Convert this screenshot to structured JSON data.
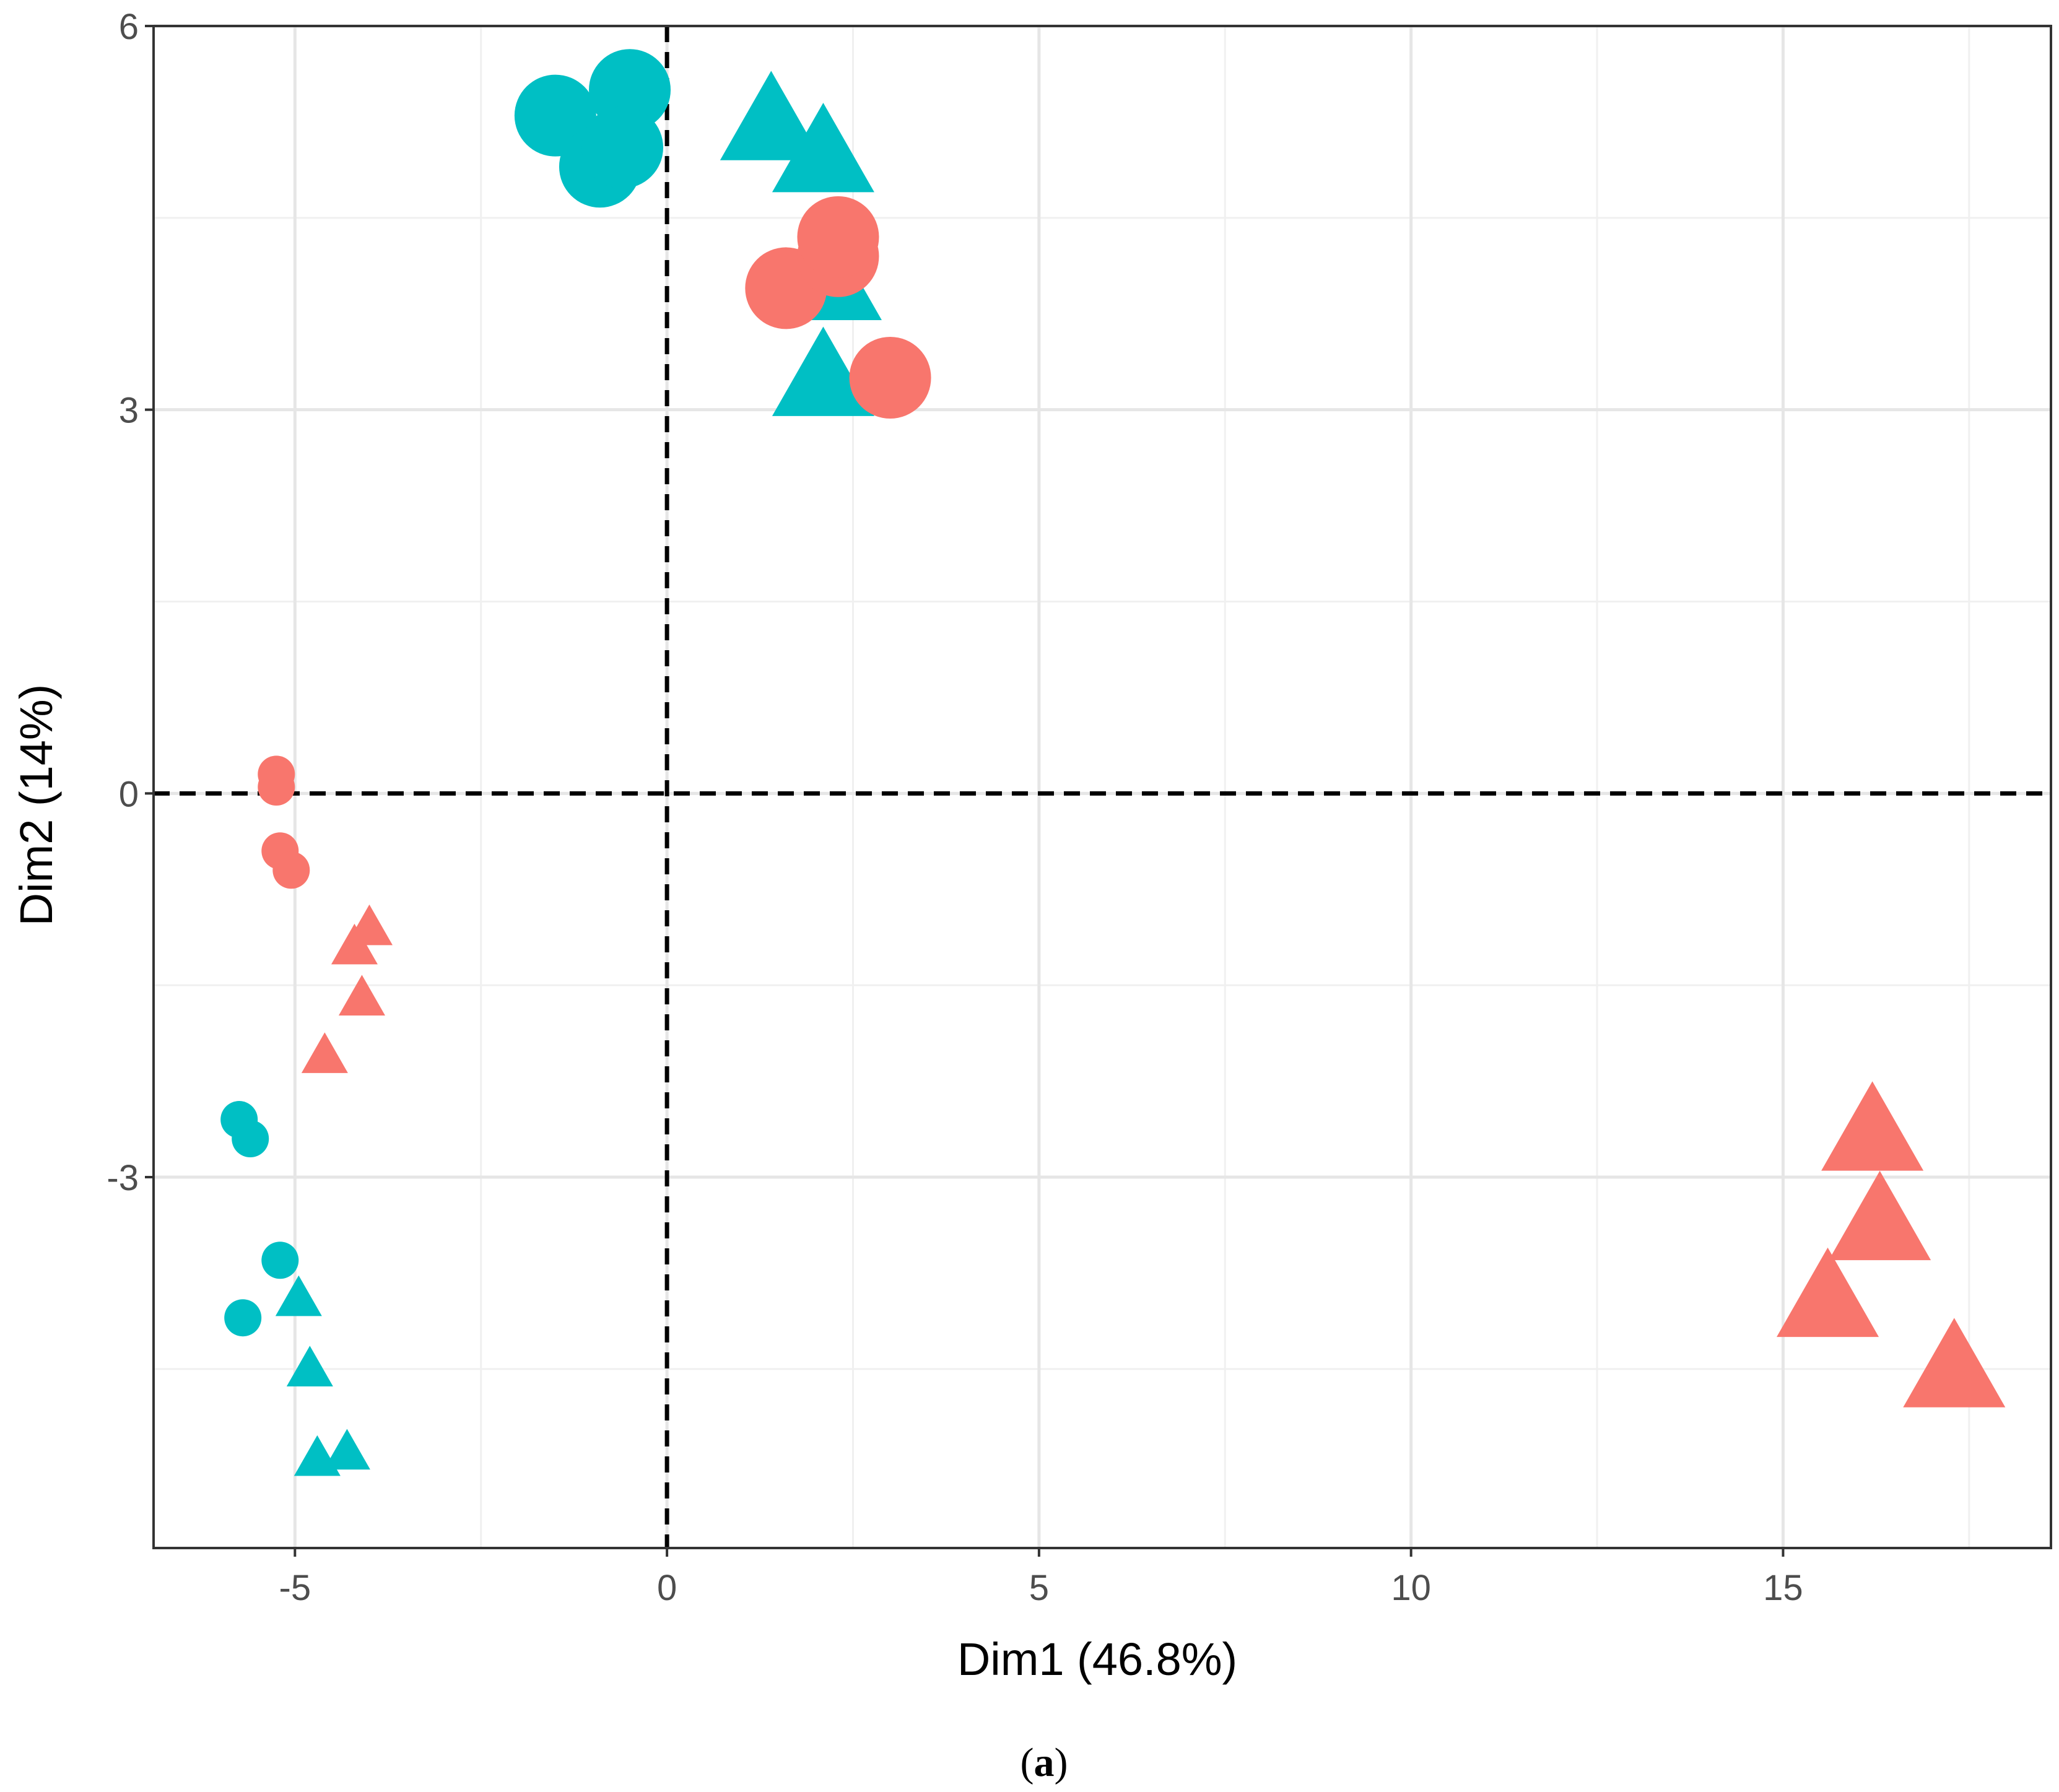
{
  "chart_data": {
    "type": "scatter",
    "title": "",
    "panel_label": {
      "open": "(",
      "letter": "a",
      "close": ")"
    },
    "xlabel": "Dim1 (46.8%)",
    "ylabel": "Dim2 (14%)",
    "xlim": [
      -6.9,
      18.6
    ],
    "ylim": [
      -5.9,
      6.0
    ],
    "x_ticks": [
      -5,
      0,
      5,
      10,
      15
    ],
    "x_tick_labels": [
      "-5",
      "0",
      "5",
      "10",
      "15"
    ],
    "y_ticks": [
      -3,
      0,
      3,
      6
    ],
    "y_tick_labels": [
      "-3",
      "0",
      "3",
      "6"
    ],
    "x_minor_ticks": [
      -2.5,
      2.5,
      7.5,
      12.5,
      17.5
    ],
    "y_minor_ticks": [
      -4.5,
      -1.5,
      1.5,
      4.5
    ],
    "grid": true,
    "reference_lines": {
      "x": 0,
      "y": 0,
      "style": "dashed"
    },
    "legend": "none",
    "colors": {
      "salmon": "#F8766D",
      "teal": "#00BFC4"
    },
    "series": [
      {
        "name": "teal-circle-large",
        "color": "teal",
        "shape": "circle",
        "size": "large",
        "points": [
          [
            -1.5,
            5.3
          ],
          [
            -0.5,
            5.5
          ],
          [
            -0.9,
            4.9
          ],
          [
            -0.6,
            5.05
          ]
        ]
      },
      {
        "name": "teal-triangle-large",
        "color": "teal",
        "shape": "triangle",
        "size": "large",
        "points": [
          [
            1.4,
            5.25
          ],
          [
            2.1,
            5.0
          ],
          [
            2.2,
            4.0
          ],
          [
            2.1,
            3.25
          ]
        ]
      },
      {
        "name": "salmon-circle-large",
        "color": "salmon",
        "shape": "circle",
        "size": "large",
        "points": [
          [
            1.6,
            3.95
          ],
          [
            2.3,
            4.2
          ],
          [
            2.3,
            4.35
          ],
          [
            3.0,
            3.25
          ]
        ]
      },
      {
        "name": "salmon-circle-small",
        "color": "salmon",
        "shape": "circle",
        "size": "small",
        "points": [
          [
            -5.25,
            0.15
          ],
          [
            -5.25,
            0.05
          ],
          [
            -5.2,
            -0.45
          ],
          [
            -5.05,
            -0.6
          ]
        ]
      },
      {
        "name": "salmon-triangle-small",
        "color": "salmon",
        "shape": "triangle",
        "size": "small",
        "points": [
          [
            -4.0,
            -1.05
          ],
          [
            -4.2,
            -1.2
          ],
          [
            -4.1,
            -1.6
          ],
          [
            -4.6,
            -2.05
          ]
        ]
      },
      {
        "name": "teal-circle-small",
        "color": "teal",
        "shape": "circle",
        "size": "small",
        "points": [
          [
            -5.75,
            -2.55
          ],
          [
            -5.6,
            -2.7
          ],
          [
            -5.2,
            -3.65
          ],
          [
            -5.7,
            -4.1
          ]
        ]
      },
      {
        "name": "teal-triangle-small",
        "color": "teal",
        "shape": "triangle",
        "size": "small",
        "points": [
          [
            -4.95,
            -3.95
          ],
          [
            -4.8,
            -4.5
          ],
          [
            -4.7,
            -5.2
          ],
          [
            -4.3,
            -5.15
          ]
        ]
      },
      {
        "name": "salmon-triangle-large",
        "color": "salmon",
        "shape": "triangle",
        "size": "large",
        "points": [
          [
            16.2,
            -2.65
          ],
          [
            16.3,
            -3.35
          ],
          [
            15.6,
            -3.95
          ],
          [
            17.3,
            -4.5
          ]
        ]
      }
    ]
  }
}
